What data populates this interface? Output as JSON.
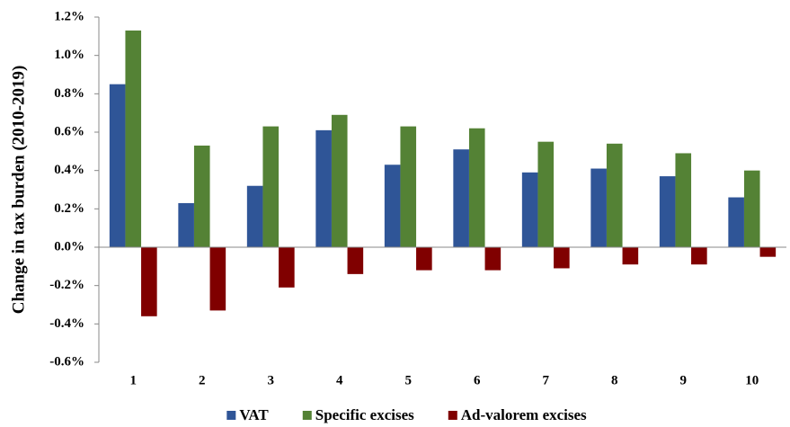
{
  "chart_data": {
    "type": "bar",
    "y_label": "Change in tax burden (2010-2019)",
    "categories": [
      "1",
      "2",
      "3",
      "4",
      "5",
      "6",
      "7",
      "8",
      "9",
      "10"
    ],
    "series": [
      {
        "name": "VAT",
        "color": "#2f5597",
        "values": [
          0.85,
          0.23,
          0.32,
          0.61,
          0.43,
          0.51,
          0.39,
          0.41,
          0.37,
          0.26
        ]
      },
      {
        "name": "Specific excises",
        "color": "#548235",
        "values": [
          1.13,
          0.53,
          0.63,
          0.69,
          0.63,
          0.62,
          0.55,
          0.54,
          0.49,
          0.4
        ]
      },
      {
        "name": "Ad-valorem excises",
        "color": "#800000",
        "values": [
          -0.36,
          -0.33,
          -0.21,
          -0.14,
          -0.12,
          -0.12,
          -0.11,
          -0.09,
          -0.09,
          -0.05
        ]
      }
    ],
    "ylim": [
      -0.6,
      1.2
    ],
    "yticks": [
      {
        "value": -0.6,
        "label": "-0.6%"
      },
      {
        "value": -0.4,
        "label": "-0.4%"
      },
      {
        "value": -0.2,
        "label": "-0.2%"
      },
      {
        "value": 0,
        "label": "0.0%"
      },
      {
        "value": 0.2,
        "label": "0.2%"
      },
      {
        "value": 0.4,
        "label": "0.4%"
      },
      {
        "value": 0.6,
        "label": "0.6%"
      },
      {
        "value": 0.8,
        "label": "0.8%"
      },
      {
        "value": 1.0,
        "label": "1.0%"
      },
      {
        "value": 1.2,
        "label": "1.2%"
      }
    ],
    "grid": false,
    "legend": "bottom"
  }
}
